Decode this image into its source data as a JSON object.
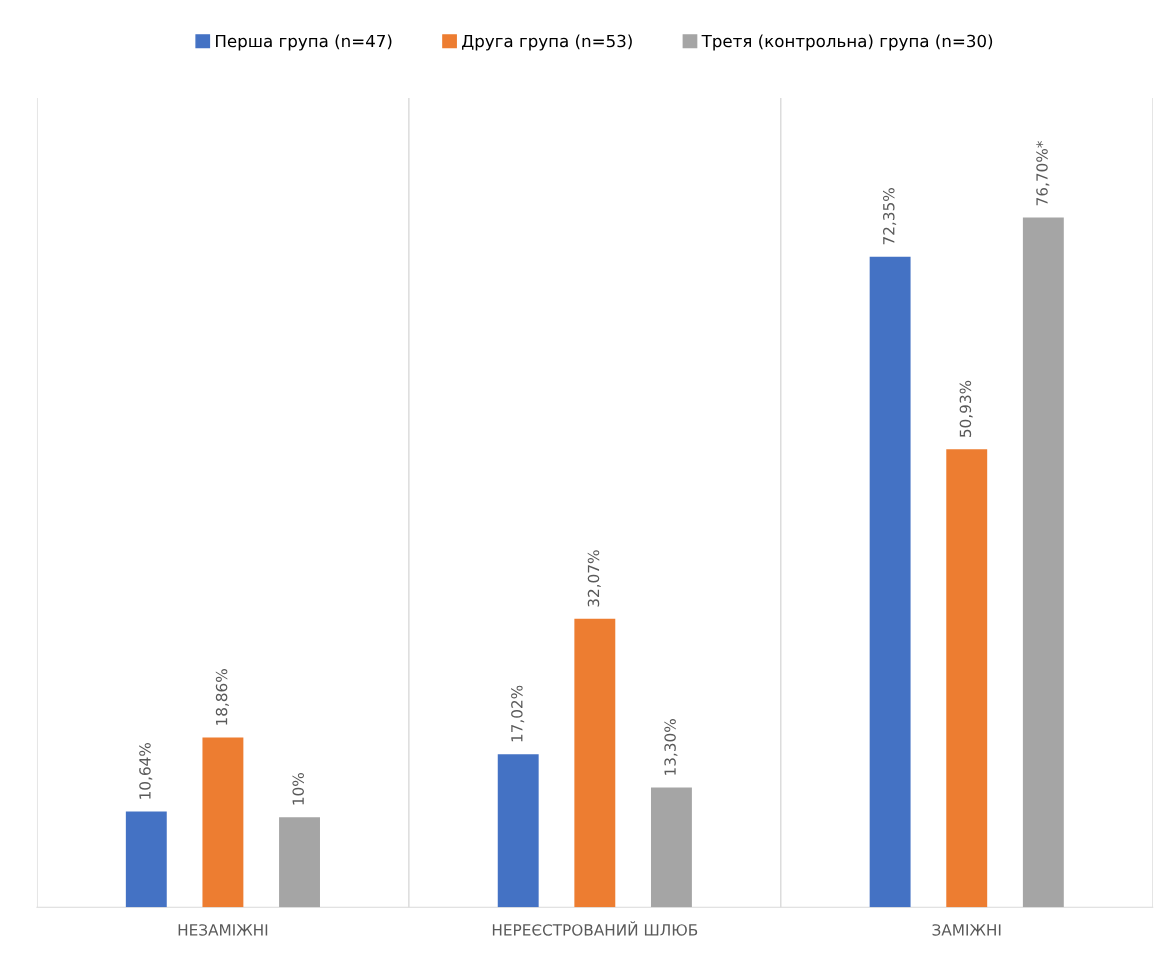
{
  "chart_data": {
    "type": "bar",
    "categories": [
      "НЕЗАМІЖНІ",
      "НЕРЕЄСТРОВАНИЙ ШЛЮБ",
      "ЗАМІЖНІ"
    ],
    "series": [
      {
        "name": "Перша група (n=47)",
        "color": "#4472c4",
        "values": [
          10.64,
          17.02,
          72.35
        ],
        "value_labels": [
          "10,64%",
          "17,02%",
          "72,35%"
        ]
      },
      {
        "name": "Друга група (n=53)",
        "color": "#ed7d31",
        "values": [
          18.86,
          32.07,
          50.93
        ],
        "value_labels": [
          "18,86%",
          "32,07%",
          "50,93%"
        ]
      },
      {
        "name": "Третя (контрольна) група (n=30)",
        "color": "#a5a5a5",
        "values": [
          10,
          13.3,
          76.7
        ],
        "value_labels": [
          "10%",
          "13,30%",
          "76,70%*"
        ]
      }
    ],
    "ylim": [
      0,
      90
    ],
    "tick_labels": "x",
    "grid": "x",
    "legend": "top"
  }
}
